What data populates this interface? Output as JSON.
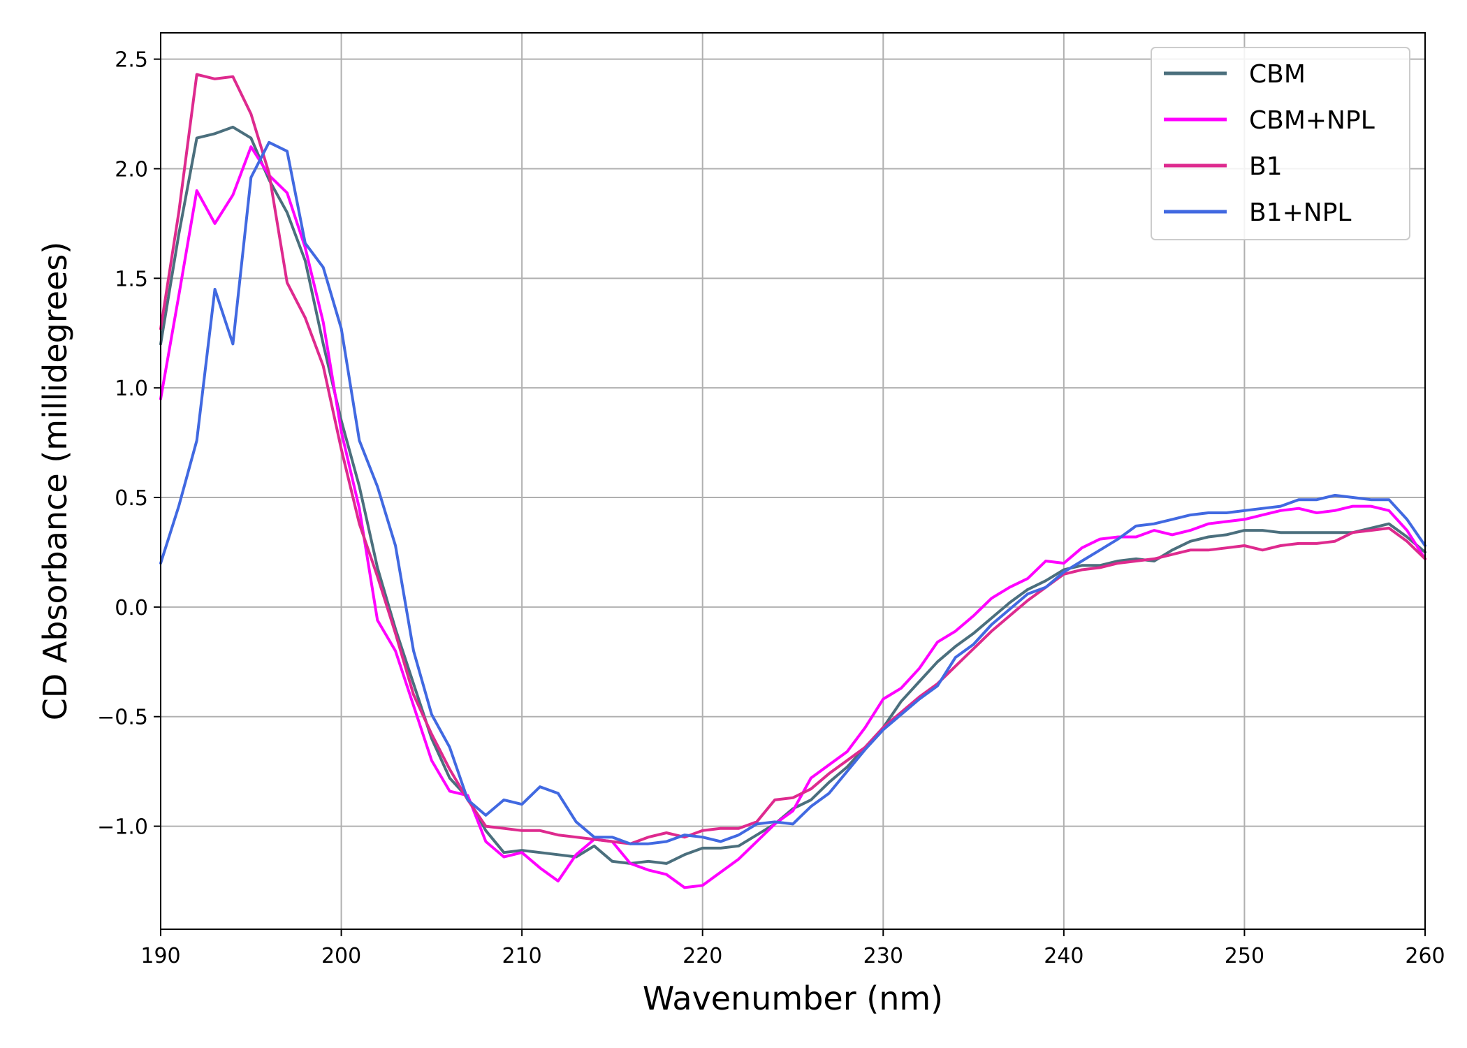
{
  "chart_data": {
    "type": "line",
    "xlabel": "Wavenumber (nm)",
    "ylabel": "CD Absorbance (millidegrees)",
    "xlim": [
      190,
      260
    ],
    "ylim": [
      -1.47,
      2.62
    ],
    "xticks": [
      190,
      200,
      210,
      220,
      230,
      240,
      250,
      260
    ],
    "yticks": [
      -1.0,
      -0.5,
      0.0,
      0.5,
      1.0,
      1.5,
      2.0,
      2.5
    ],
    "grid": true,
    "legend_position": "top-right",
    "series": [
      {
        "name": "CBM",
        "color": "#4b6f7d",
        "x": [
          190,
          191,
          192,
          193,
          194,
          195,
          196,
          197,
          198,
          199,
          200,
          201,
          202,
          203,
          204,
          205,
          206,
          207,
          208,
          209,
          210,
          211,
          212,
          213,
          214,
          215,
          216,
          217,
          218,
          219,
          220,
          221,
          222,
          223,
          224,
          225,
          226,
          227,
          228,
          229,
          230,
          231,
          232,
          233,
          234,
          235,
          236,
          237,
          238,
          239,
          240,
          241,
          242,
          243,
          244,
          245,
          246,
          247,
          248,
          249,
          250,
          251,
          252,
          253,
          254,
          255,
          256,
          257,
          258,
          259,
          260
        ],
        "y": [
          1.2,
          1.7,
          2.14,
          2.16,
          2.19,
          2.14,
          1.95,
          1.8,
          1.58,
          1.2,
          0.85,
          0.55,
          0.18,
          -0.1,
          -0.35,
          -0.6,
          -0.78,
          -0.87,
          -1.02,
          -1.12,
          -1.11,
          -1.12,
          -1.13,
          -1.14,
          -1.09,
          -1.16,
          -1.17,
          -1.16,
          -1.17,
          -1.13,
          -1.1,
          -1.1,
          -1.09,
          -1.04,
          -0.99,
          -0.92,
          -0.88,
          -0.8,
          -0.73,
          -0.64,
          -0.55,
          -0.43,
          -0.34,
          -0.25,
          -0.18,
          -0.12,
          -0.05,
          0.02,
          0.08,
          0.12,
          0.17,
          0.19,
          0.19,
          0.21,
          0.22,
          0.21,
          0.26,
          0.3,
          0.32,
          0.33,
          0.35,
          0.35,
          0.34,
          0.34,
          0.34,
          0.34,
          0.34,
          0.36,
          0.38,
          0.32,
          0.25
        ]
      },
      {
        "name": "CBM+NPL",
        "color": "#ff00ff",
        "x": [
          190,
          191,
          192,
          193,
          194,
          195,
          196,
          197,
          198,
          199,
          200,
          201,
          202,
          203,
          204,
          205,
          206,
          207,
          208,
          209,
          210,
          211,
          212,
          213,
          214,
          215,
          216,
          217,
          218,
          219,
          220,
          221,
          222,
          223,
          224,
          225,
          226,
          227,
          228,
          229,
          230,
          231,
          232,
          233,
          234,
          235,
          236,
          237,
          238,
          239,
          240,
          241,
          242,
          243,
          244,
          245,
          246,
          247,
          248,
          249,
          250,
          251,
          252,
          253,
          254,
          255,
          256,
          257,
          258,
          259,
          260
        ],
        "y": [
          0.95,
          1.42,
          1.9,
          1.75,
          1.88,
          2.1,
          1.97,
          1.89,
          1.64,
          1.3,
          0.8,
          0.45,
          -0.06,
          -0.2,
          -0.45,
          -0.7,
          -0.84,
          -0.86,
          -1.07,
          -1.14,
          -1.12,
          -1.19,
          -1.25,
          -1.13,
          -1.06,
          -1.07,
          -1.17,
          -1.2,
          -1.22,
          -1.28,
          -1.27,
          -1.21,
          -1.15,
          -1.07,
          -0.99,
          -0.93,
          -0.78,
          -0.72,
          -0.66,
          -0.55,
          -0.42,
          -0.37,
          -0.28,
          -0.16,
          -0.11,
          -0.04,
          0.04,
          0.09,
          0.13,
          0.21,
          0.2,
          0.27,
          0.31,
          0.32,
          0.32,
          0.35,
          0.33,
          0.35,
          0.38,
          0.39,
          0.4,
          0.42,
          0.44,
          0.45,
          0.43,
          0.44,
          0.46,
          0.46,
          0.44,
          0.35,
          0.22
        ]
      },
      {
        "name": "B1",
        "color": "#de2a8e",
        "x": [
          190,
          191,
          192,
          193,
          194,
          195,
          196,
          197,
          198,
          199,
          200,
          201,
          202,
          203,
          204,
          205,
          206,
          207,
          208,
          209,
          210,
          211,
          212,
          213,
          214,
          215,
          216,
          217,
          218,
          219,
          220,
          221,
          222,
          223,
          224,
          225,
          226,
          227,
          228,
          229,
          230,
          231,
          232,
          233,
          234,
          235,
          236,
          237,
          238,
          239,
          240,
          241,
          242,
          243,
          244,
          245,
          246,
          247,
          248,
          249,
          250,
          251,
          252,
          253,
          254,
          255,
          256,
          257,
          258,
          259,
          260
        ],
        "y": [
          1.27,
          1.8,
          2.43,
          2.41,
          2.42,
          2.25,
          1.98,
          1.48,
          1.32,
          1.1,
          0.72,
          0.38,
          0.14,
          -0.12,
          -0.4,
          -0.58,
          -0.74,
          -0.88,
          -1.0,
          -1.01,
          -1.02,
          -1.02,
          -1.04,
          -1.05,
          -1.06,
          -1.07,
          -1.08,
          -1.05,
          -1.03,
          -1.05,
          -1.02,
          -1.01,
          -1.01,
          -0.98,
          -0.88,
          -0.87,
          -0.83,
          -0.76,
          -0.7,
          -0.64,
          -0.55,
          -0.48,
          -0.41,
          -0.35,
          -0.27,
          -0.19,
          -0.11,
          -0.04,
          0.03,
          0.09,
          0.15,
          0.17,
          0.18,
          0.2,
          0.21,
          0.22,
          0.24,
          0.26,
          0.26,
          0.27,
          0.28,
          0.26,
          0.28,
          0.29,
          0.29,
          0.3,
          0.34,
          0.35,
          0.36,
          0.3,
          0.22
        ]
      },
      {
        "name": "B1+NPL",
        "color": "#4169e1",
        "x": [
          190,
          191,
          192,
          193,
          194,
          195,
          196,
          197,
          198,
          199,
          200,
          201,
          202,
          203,
          204,
          205,
          206,
          207,
          208,
          209,
          210,
          211,
          212,
          213,
          214,
          215,
          216,
          217,
          218,
          219,
          220,
          221,
          222,
          223,
          224,
          225,
          226,
          227,
          228,
          229,
          230,
          231,
          232,
          233,
          234,
          235,
          236,
          237,
          238,
          239,
          240,
          241,
          242,
          243,
          244,
          245,
          246,
          247,
          248,
          249,
          250,
          251,
          252,
          253,
          254,
          255,
          256,
          257,
          258,
          259,
          260
        ],
        "y": [
          0.2,
          0.46,
          0.76,
          1.45,
          1.2,
          1.96,
          2.12,
          2.08,
          1.66,
          1.55,
          1.27,
          0.76,
          0.55,
          0.28,
          -0.2,
          -0.49,
          -0.64,
          -0.88,
          -0.95,
          -0.88,
          -0.9,
          -0.82,
          -0.85,
          -0.98,
          -1.05,
          -1.05,
          -1.08,
          -1.08,
          -1.07,
          -1.04,
          -1.05,
          -1.07,
          -1.04,
          -0.99,
          -0.98,
          -0.99,
          -0.91,
          -0.85,
          -0.75,
          -0.65,
          -0.56,
          -0.49,
          -0.42,
          -0.36,
          -0.23,
          -0.17,
          -0.08,
          -0.01,
          0.06,
          0.09,
          0.16,
          0.21,
          0.26,
          0.31,
          0.37,
          0.38,
          0.4,
          0.42,
          0.43,
          0.43,
          0.44,
          0.45,
          0.46,
          0.49,
          0.49,
          0.51,
          0.5,
          0.49,
          0.49,
          0.4,
          0.28
        ]
      }
    ]
  }
}
